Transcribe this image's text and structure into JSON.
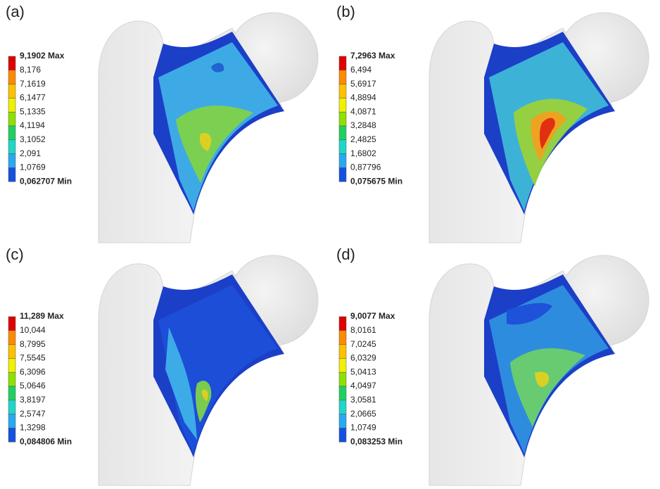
{
  "panels": [
    {
      "label": "(a)",
      "legend": [
        "9,1902 Max",
        "8,176",
        "7,1619",
        "6,1477",
        "5,1335",
        "4,1194",
        "3,1052",
        "2,091",
        "1,0769",
        "0,062707 Min"
      ]
    },
    {
      "label": "(b)",
      "legend": [
        "7,2963 Max",
        "6,494",
        "5,6917",
        "4,8894",
        "4,0871",
        "3,2848",
        "2,4825",
        "1,6802",
        "0,87796",
        "0,075675 Min"
      ]
    },
    {
      "label": "(c)",
      "legend": [
        "11,289 Max",
        "10,044",
        "8,7995",
        "7,5545",
        "6,3096",
        "5,0646",
        "3,8197",
        "2,5747",
        "1,3298",
        "0,084806 Min"
      ]
    },
    {
      "label": "(d)",
      "legend": [
        "9,0077 Max",
        "8,0161",
        "7,0245",
        "6,0329",
        "5,0413",
        "4,0497",
        "3,0581",
        "2,0665",
        "1,0749",
        "0,083253 Min"
      ]
    }
  ]
}
